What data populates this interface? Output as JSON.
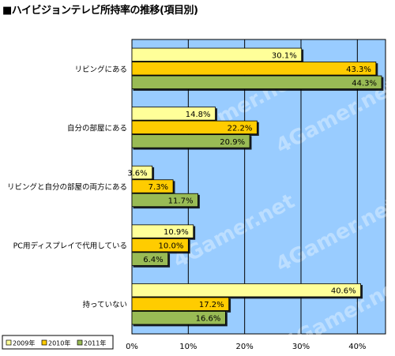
{
  "title": "■ハイビジョンテレビ所持率の推移(項目別)",
  "watermark": "4Gamer.net",
  "colors": {
    "plot_bg": "#99ccff",
    "grid": "#000000",
    "page_bg": "#ffffff"
  },
  "chart_data": {
    "type": "bar",
    "orientation": "horizontal",
    "title": "■ハイビジョンテレビ所持率の推移(項目別)",
    "categories": [
      "リビングにある",
      "自分の部屋にある",
      "リビングと自分の部屋の両方にある",
      "PC用ディスプレイで代用している",
      "持っていない"
    ],
    "series": [
      {
        "name": "2009年",
        "color": "#ffff99",
        "values": [
          30.1,
          14.8,
          3.6,
          10.9,
          40.6
        ],
        "labels": [
          "30.1%",
          "14.8%",
          "3.6%",
          "10.9%",
          "40.6%"
        ]
      },
      {
        "name": "2010年",
        "color": "#ffcc00",
        "values": [
          43.3,
          22.2,
          7.3,
          10.0,
          17.2
        ],
        "labels": [
          "43.3%",
          "22.2%",
          "7.3%",
          "10.0%",
          "17.2%"
        ]
      },
      {
        "name": "2011年",
        "color": "#99bb55",
        "values": [
          44.3,
          20.9,
          11.7,
          6.4,
          16.6
        ],
        "labels": [
          "44.3%",
          "20.9%",
          "11.7%",
          "6.4%",
          "16.6%"
        ]
      }
    ],
    "xlim": [
      0,
      45
    ],
    "xticks": [
      0,
      10,
      20,
      30,
      40
    ],
    "xtick_labels": [
      "0%",
      "10%",
      "20%",
      "30%",
      "40%"
    ],
    "grid": true,
    "legend_position": "bottom-left"
  }
}
